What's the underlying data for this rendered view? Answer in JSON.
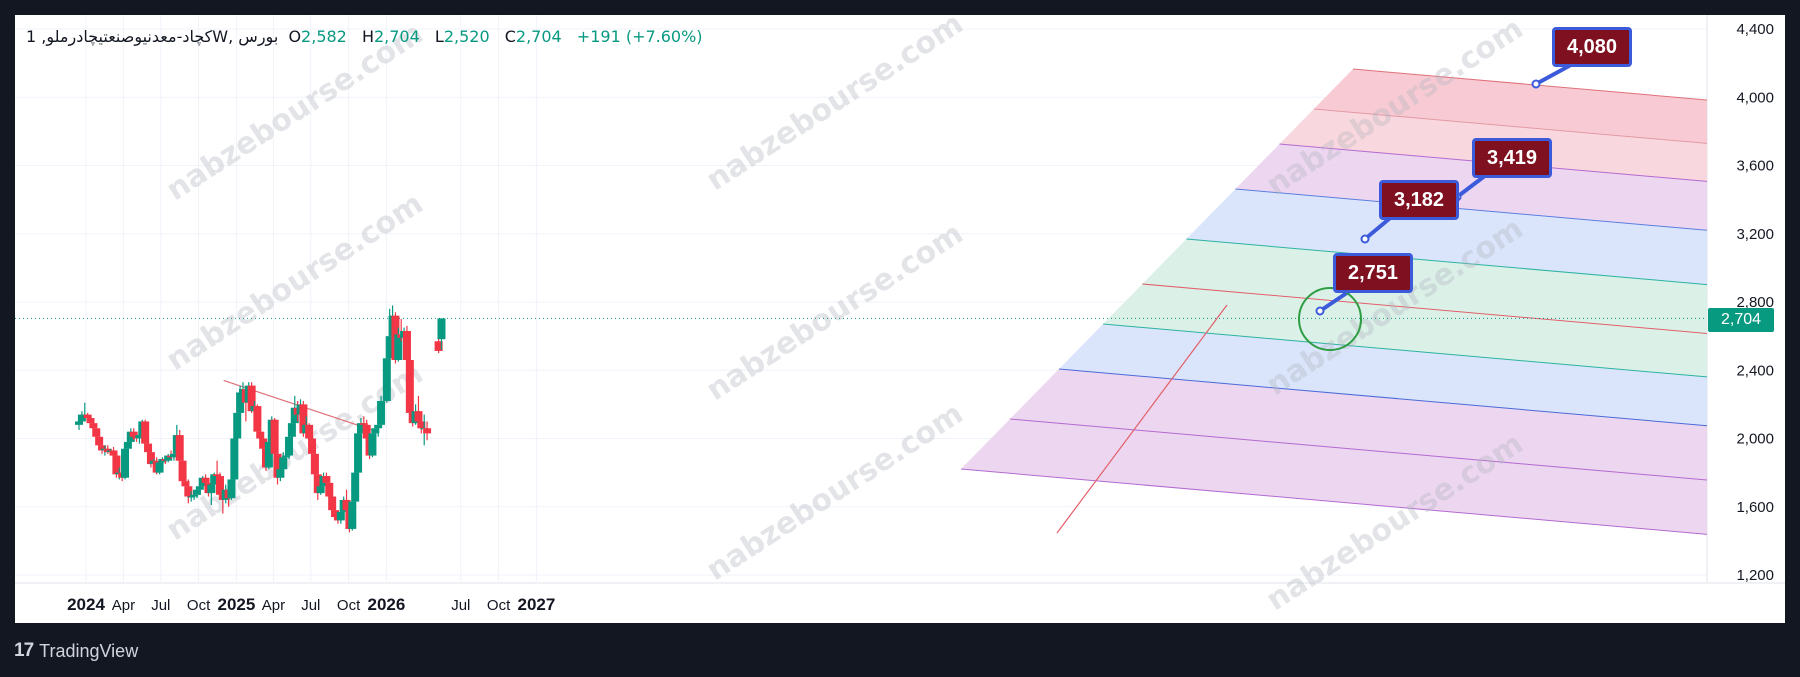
{
  "legend": {
    "symbol": "کچاد-معدنیوصنعتیچادرملو, 1W, بورس",
    "open_key": "O",
    "open": "2,582",
    "high_key": "H",
    "high": "2,704",
    "low_key": "L",
    "low": "2,520",
    "close_key": "C",
    "close": "2,704",
    "change": "+191 (+7.60%)"
  },
  "last_price_label": "2,704",
  "targets": [
    "2,751",
    "3,182",
    "3,419",
    "4,080"
  ],
  "watermark": "nabzebourse.com",
  "brand": "TradingView",
  "colors": {
    "up": "#089981",
    "down": "#f23645",
    "background": "#ffffff",
    "frame": "#131722"
  },
  "chart_data": {
    "type": "candlestick",
    "y_axis_ticks": [
      "4,400",
      "4,000",
      "3,600",
      "3,200",
      "2,800",
      "2,400",
      "2,000",
      "1,600",
      "1,200"
    ],
    "x_axis_ticks": [
      "2024",
      "Apr",
      "Jul",
      "Oct",
      "2025",
      "Apr",
      "Jul",
      "Oct",
      "2026",
      "Jul",
      "Oct",
      "2027"
    ],
    "ylim": [
      1170,
      4420
    ],
    "last_price": 2704,
    "target_levels": [
      2751,
      3182,
      3419,
      4080
    ],
    "trendline": {
      "start": [
        "2024-12-01",
        2340
      ],
      "end": [
        "2025-12-10",
        2040
      ]
    },
    "candles": [
      {
        "t": "2023-12-15",
        "o": 2080,
        "h": 2120,
        "l": 2050,
        "c": 2100
      },
      {
        "t": "2023-12-22",
        "o": 2100,
        "h": 2160,
        "l": 2090,
        "c": 2140
      },
      {
        "t": "2023-12-29",
        "o": 2130,
        "h": 2210,
        "l": 2110,
        "c": 2140
      },
      {
        "t": "2024-01-05",
        "o": 2140,
        "h": 2150,
        "l": 2100,
        "c": 2120
      },
      {
        "t": "2024-01-12",
        "o": 2120,
        "h": 2130,
        "l": 2070,
        "c": 2090
      },
      {
        "t": "2024-01-19",
        "o": 2090,
        "h": 2110,
        "l": 2040,
        "c": 2060
      },
      {
        "t": "2024-01-26",
        "o": 2060,
        "h": 2080,
        "l": 2000,
        "c": 2010
      },
      {
        "t": "2024-02-02",
        "o": 2010,
        "h": 2030,
        "l": 1940,
        "c": 1960
      },
      {
        "t": "2024-02-09",
        "o": 1960,
        "h": 1980,
        "l": 1910,
        "c": 1930
      },
      {
        "t": "2024-02-16",
        "o": 1930,
        "h": 1960,
        "l": 1900,
        "c": 1940
      },
      {
        "t": "2024-02-23",
        "o": 1940,
        "h": 1960,
        "l": 1910,
        "c": 1920
      },
      {
        "t": "2024-03-01",
        "o": 1920,
        "h": 1940,
        "l": 1900,
        "c": 1930
      },
      {
        "t": "2024-03-08",
        "o": 1930,
        "h": 1950,
        "l": 1890,
        "c": 1900
      },
      {
        "t": "2024-03-15",
        "o": 1900,
        "h": 1910,
        "l": 1770,
        "c": 1790
      },
      {
        "t": "2024-03-22",
        "o": 1790,
        "h": 1830,
        "l": 1760,
        "c": 1800
      },
      {
        "t": "2024-03-29",
        "o": 1800,
        "h": 1810,
        "l": 1750,
        "c": 1770
      },
      {
        "t": "2024-04-05",
        "o": 1770,
        "h": 1950,
        "l": 1760,
        "c": 1940
      },
      {
        "t": "2024-04-12",
        "o": 1940,
        "h": 1990,
        "l": 1920,
        "c": 1980
      },
      {
        "t": "2024-04-19",
        "o": 1980,
        "h": 2060,
        "l": 1960,
        "c": 2040
      },
      {
        "t": "2024-04-26",
        "o": 2040,
        "h": 2060,
        "l": 1990,
        "c": 2010
      },
      {
        "t": "2024-05-03",
        "o": 2010,
        "h": 2030,
        "l": 1980,
        "c": 2000
      },
      {
        "t": "2024-05-10",
        "o": 2000,
        "h": 2030,
        "l": 1970,
        "c": 2020
      },
      {
        "t": "2024-05-17",
        "o": 2020,
        "h": 2110,
        "l": 2000,
        "c": 2100
      },
      {
        "t": "2024-05-24",
        "o": 2100,
        "h": 2110,
        "l": 1950,
        "c": 1970
      },
      {
        "t": "2024-05-31",
        "o": 1970,
        "h": 1990,
        "l": 1900,
        "c": 1920
      },
      {
        "t": "2024-06-07",
        "o": 1920,
        "h": 1940,
        "l": 1830,
        "c": 1850
      },
      {
        "t": "2024-06-14",
        "o": 1850,
        "h": 1880,
        "l": 1820,
        "c": 1870
      },
      {
        "t": "2024-06-21",
        "o": 1870,
        "h": 1890,
        "l": 1790,
        "c": 1800
      },
      {
        "t": "2024-06-28",
        "o": 1800,
        "h": 1880,
        "l": 1790,
        "c": 1860
      },
      {
        "t": "2024-07-05",
        "o": 1860,
        "h": 1890,
        "l": 1840,
        "c": 1880
      },
      {
        "t": "2024-07-12",
        "o": 1880,
        "h": 1900,
        "l": 1850,
        "c": 1870
      },
      {
        "t": "2024-07-19",
        "o": 1870,
        "h": 1910,
        "l": 1860,
        "c": 1900
      },
      {
        "t": "2024-07-26",
        "o": 1900,
        "h": 1930,
        "l": 1880,
        "c": 1890
      },
      {
        "t": "2024-08-02",
        "o": 1890,
        "h": 1920,
        "l": 1870,
        "c": 1910
      },
      {
        "t": "2024-08-09",
        "o": 1910,
        "h": 2080,
        "l": 1900,
        "c": 2020
      },
      {
        "t": "2024-08-16",
        "o": 2020,
        "h": 2050,
        "l": 1850,
        "c": 1870
      },
      {
        "t": "2024-08-23",
        "o": 1870,
        "h": 1900,
        "l": 1720,
        "c": 1750
      },
      {
        "t": "2024-08-30",
        "o": 1750,
        "h": 1780,
        "l": 1700,
        "c": 1720
      },
      {
        "t": "2024-09-06",
        "o": 1720,
        "h": 1760,
        "l": 1620,
        "c": 1660
      },
      {
        "t": "2024-09-13",
        "o": 1660,
        "h": 1690,
        "l": 1630,
        "c": 1660
      },
      {
        "t": "2024-09-20",
        "o": 1660,
        "h": 1690,
        "l": 1640,
        "c": 1670
      },
      {
        "t": "2024-09-27",
        "o": 1670,
        "h": 1720,
        "l": 1650,
        "c": 1700
      },
      {
        "t": "2024-10-04",
        "o": 1700,
        "h": 1740,
        "l": 1670,
        "c": 1720
      },
      {
        "t": "2024-10-11",
        "o": 1720,
        "h": 1780,
        "l": 1700,
        "c": 1770
      },
      {
        "t": "2024-10-18",
        "o": 1770,
        "h": 1790,
        "l": 1730,
        "c": 1740
      },
      {
        "t": "2024-10-25",
        "o": 1740,
        "h": 1760,
        "l": 1660,
        "c": 1680
      },
      {
        "t": "2024-11-01",
        "o": 1680,
        "h": 1750,
        "l": 1610,
        "c": 1730
      },
      {
        "t": "2024-11-08",
        "o": 1730,
        "h": 1800,
        "l": 1710,
        "c": 1790
      },
      {
        "t": "2024-11-15",
        "o": 1790,
        "h": 1870,
        "l": 1760,
        "c": 1780
      },
      {
        "t": "2024-11-22",
        "o": 1780,
        "h": 1800,
        "l": 1650,
        "c": 1670
      },
      {
        "t": "2024-11-29",
        "o": 1670,
        "h": 1700,
        "l": 1560,
        "c": 1640
      },
      {
        "t": "2024-12-06",
        "o": 1640,
        "h": 1730,
        "l": 1620,
        "c": 1700
      },
      {
        "t": "2024-12-13",
        "o": 1700,
        "h": 1720,
        "l": 1600,
        "c": 1650
      },
      {
        "t": "2024-12-20",
        "o": 1650,
        "h": 1800,
        "l": 1640,
        "c": 1760
      },
      {
        "t": "2024-12-27",
        "o": 1760,
        "h": 2050,
        "l": 1750,
        "c": 2000
      },
      {
        "t": "2025-01-03",
        "o": 2000,
        "h": 2200,
        "l": 1990,
        "c": 2150
      },
      {
        "t": "2025-01-10",
        "o": 2150,
        "h": 2310,
        "l": 2140,
        "c": 2270
      },
      {
        "t": "2025-01-17",
        "o": 2270,
        "h": 2330,
        "l": 2230,
        "c": 2290
      },
      {
        "t": "2025-01-24",
        "o": 2290,
        "h": 2310,
        "l": 2100,
        "c": 2210
      },
      {
        "t": "2025-01-31",
        "o": 2210,
        "h": 2330,
        "l": 2200,
        "c": 2310
      },
      {
        "t": "2025-02-07",
        "o": 2310,
        "h": 2330,
        "l": 2150,
        "c": 2160
      },
      {
        "t": "2025-02-14",
        "o": 2160,
        "h": 2220,
        "l": 2140,
        "c": 2190
      },
      {
        "t": "2025-02-21",
        "o": 2190,
        "h": 2200,
        "l": 2020,
        "c": 2040
      },
      {
        "t": "2025-02-28",
        "o": 2040,
        "h": 2080,
        "l": 1970,
        "c": 2000
      },
      {
        "t": "2025-03-07",
        "o": 2000,
        "h": 2010,
        "l": 1920,
        "c": 1940
      },
      {
        "t": "2025-03-14",
        "o": 1940,
        "h": 1960,
        "l": 1810,
        "c": 1830
      },
      {
        "t": "2025-03-21",
        "o": 1830,
        "h": 2000,
        "l": 1820,
        "c": 1980
      },
      {
        "t": "2025-03-28",
        "o": 1980,
        "h": 2130,
        "l": 1970,
        "c": 2110
      },
      {
        "t": "2025-04-04",
        "o": 2110,
        "h": 2120,
        "l": 1890,
        "c": 1910
      },
      {
        "t": "2025-04-11",
        "o": 1910,
        "h": 1930,
        "l": 1730,
        "c": 1770
      },
      {
        "t": "2025-04-18",
        "o": 1770,
        "h": 1850,
        "l": 1750,
        "c": 1820
      },
      {
        "t": "2025-04-25",
        "o": 1820,
        "h": 1920,
        "l": 1800,
        "c": 1890
      },
      {
        "t": "2025-05-02",
        "o": 1890,
        "h": 1930,
        "l": 1870,
        "c": 1900
      },
      {
        "t": "2025-05-09",
        "o": 1900,
        "h": 2030,
        "l": 1880,
        "c": 2010
      },
      {
        "t": "2025-05-16",
        "o": 2010,
        "h": 2180,
        "l": 2000,
        "c": 2090
      },
      {
        "t": "2025-05-23",
        "o": 2090,
        "h": 2250,
        "l": 2080,
        "c": 2180
      },
      {
        "t": "2025-05-30",
        "o": 2180,
        "h": 2220,
        "l": 2100,
        "c": 2140
      },
      {
        "t": "2025-06-06",
        "o": 2140,
        "h": 2230,
        "l": 2120,
        "c": 2200
      },
      {
        "t": "2025-06-13",
        "o": 2200,
        "h": 2220,
        "l": 2010,
        "c": 2030
      },
      {
        "t": "2025-06-20",
        "o": 2030,
        "h": 2130,
        "l": 2020,
        "c": 2080
      },
      {
        "t": "2025-06-27",
        "o": 2080,
        "h": 2090,
        "l": 1980,
        "c": 2000
      },
      {
        "t": "2025-07-04",
        "o": 2000,
        "h": 2050,
        "l": 1880,
        "c": 1910
      },
      {
        "t": "2025-07-11",
        "o": 1910,
        "h": 1920,
        "l": 1780,
        "c": 1790
      },
      {
        "t": "2025-07-18",
        "o": 1790,
        "h": 1810,
        "l": 1640,
        "c": 1680
      },
      {
        "t": "2025-07-25",
        "o": 1680,
        "h": 1740,
        "l": 1670,
        "c": 1720
      },
      {
        "t": "2025-08-01",
        "o": 1720,
        "h": 1800,
        "l": 1710,
        "c": 1780
      },
      {
        "t": "2025-08-08",
        "o": 1780,
        "h": 1800,
        "l": 1720,
        "c": 1740
      },
      {
        "t": "2025-08-15",
        "o": 1740,
        "h": 1760,
        "l": 1640,
        "c": 1660
      },
      {
        "t": "2025-08-22",
        "o": 1660,
        "h": 1680,
        "l": 1560,
        "c": 1580
      },
      {
        "t": "2025-08-29",
        "o": 1580,
        "h": 1600,
        "l": 1520,
        "c": 1540
      },
      {
        "t": "2025-09-05",
        "o": 1540,
        "h": 1560,
        "l": 1500,
        "c": 1520
      },
      {
        "t": "2025-09-12",
        "o": 1520,
        "h": 1580,
        "l": 1500,
        "c": 1570
      },
      {
        "t": "2025-09-19",
        "o": 1570,
        "h": 1660,
        "l": 1560,
        "c": 1640
      },
      {
        "t": "2025-09-26",
        "o": 1640,
        "h": 1700,
        "l": 1560,
        "c": 1580
      },
      {
        "t": "2025-10-03",
        "o": 1580,
        "h": 1600,
        "l": 1450,
        "c": 1470
      },
      {
        "t": "2025-10-10",
        "o": 1470,
        "h": 1640,
        "l": 1460,
        "c": 1630
      },
      {
        "t": "2025-10-17",
        "o": 1630,
        "h": 1820,
        "l": 1620,
        "c": 1800
      },
      {
        "t": "2025-10-24",
        "o": 1800,
        "h": 2060,
        "l": 1790,
        "c": 2030
      },
      {
        "t": "2025-10-31",
        "o": 2030,
        "h": 2120,
        "l": 2010,
        "c": 2090
      },
      {
        "t": "2025-11-07",
        "o": 2090,
        "h": 2130,
        "l": 2040,
        "c": 2080
      },
      {
        "t": "2025-11-14",
        "o": 2080,
        "h": 2110,
        "l": 1990,
        "c": 2000
      },
      {
        "t": "2025-11-21",
        "o": 2000,
        "h": 2040,
        "l": 1880,
        "c": 1900
      },
      {
        "t": "2025-11-28",
        "o": 1900,
        "h": 2050,
        "l": 1890,
        "c": 2030
      },
      {
        "t": "2025-12-05",
        "o": 2030,
        "h": 2060,
        "l": 1990,
        "c": 2060
      },
      {
        "t": "2025-12-12",
        "o": 2060,
        "h": 2100,
        "l": 2010,
        "c": 2080
      },
      {
        "t": "2025-12-19",
        "o": 2080,
        "h": 2250,
        "l": 2070,
        "c": 2220
      },
      {
        "t": "2026-01-02",
        "o": 2220,
        "h": 2500,
        "l": 2210,
        "c": 2470
      },
      {
        "t": "2026-01-09",
        "o": 2470,
        "h": 2760,
        "l": 2460,
        "c": 2600
      },
      {
        "t": "2026-01-16",
        "o": 2600,
        "h": 2780,
        "l": 2580,
        "c": 2720
      },
      {
        "t": "2026-01-23",
        "o": 2720,
        "h": 2740,
        "l": 2440,
        "c": 2460
      },
      {
        "t": "2026-01-30",
        "o": 2460,
        "h": 2650,
        "l": 2450,
        "c": 2610
      },
      {
        "t": "2026-02-06",
        "o": 2610,
        "h": 2700,
        "l": 2570,
        "c": 2590
      },
      {
        "t": "2026-02-13",
        "o": 2590,
        "h": 2650,
        "l": 2570,
        "c": 2630
      },
      {
        "t": "2026-02-20",
        "o": 2630,
        "h": 2660,
        "l": 2440,
        "c": 2460
      },
      {
        "t": "2026-02-27",
        "o": 2460,
        "h": 2480,
        "l": 2130,
        "c": 2150
      },
      {
        "t": "2026-03-06",
        "o": 2150,
        "h": 2180,
        "l": 2070,
        "c": 2090
      },
      {
        "t": "2026-03-13",
        "o": 2090,
        "h": 2200,
        "l": 2080,
        "c": 2160
      },
      {
        "t": "2026-03-20",
        "o": 2160,
        "h": 2250,
        "l": 2060,
        "c": 2100
      },
      {
        "t": "2026-03-27",
        "o": 2100,
        "h": 2160,
        "l": 2030,
        "c": 2060
      },
      {
        "t": "2026-04-03",
        "o": 2060,
        "h": 2140,
        "l": 1960,
        "c": 2060
      },
      {
        "t": "2026-04-10",
        "o": 2060,
        "h": 2100,
        "l": 1990,
        "c": 2030
      },
      {
        "t": "2026-05-08",
        "o": 2570,
        "h": 2610,
        "l": 2500,
        "c": 2513
      },
      {
        "t": "2026-05-15",
        "o": 2582,
        "h": 2704,
        "l": 2520,
        "c": 2704
      }
    ]
  }
}
